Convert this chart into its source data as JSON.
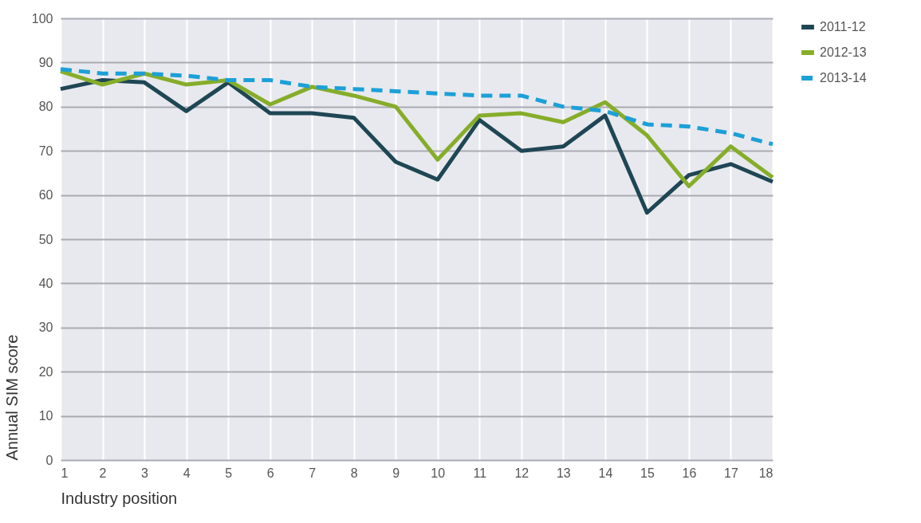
{
  "chart_data": {
    "type": "line",
    "xlabel": "Industry position",
    "ylabel": "Annual SIM score",
    "x": [
      1,
      2,
      3,
      4,
      5,
      6,
      7,
      8,
      9,
      10,
      11,
      12,
      13,
      14,
      15,
      16,
      17,
      18
    ],
    "xlim": [
      1,
      18
    ],
    "xticks": [
      1,
      2,
      3,
      4,
      5,
      6,
      7,
      8,
      9,
      10,
      11,
      12,
      13,
      14,
      15,
      16,
      17,
      18
    ],
    "ylim": [
      0,
      100
    ],
    "yticks": [
      0,
      10,
      20,
      30,
      40,
      50,
      60,
      70,
      80,
      90,
      100
    ],
    "grid": true,
    "legend": "top right",
    "marker": "none",
    "series": [
      {
        "name": "2011-12",
        "color": "#1f4654",
        "line_style": "solid",
        "values": [
          84,
          86,
          85.5,
          79,
          85.5,
          78.5,
          78.5,
          77.5,
          67.5,
          63.5,
          77,
          70,
          71,
          78,
          56,
          64.5,
          67,
          63
        ]
      },
      {
        "name": "2012-13",
        "color": "#86ad2a",
        "line_style": "solid",
        "values": [
          88,
          85,
          87.5,
          85,
          86,
          80.5,
          84.5,
          82.5,
          80,
          68,
          78,
          78.5,
          76.5,
          81,
          73.5,
          62,
          71,
          64
        ]
      },
      {
        "name": "2013-14",
        "color": "#1ca0d8",
        "line_style": "dashed",
        "values": [
          88.5,
          87.5,
          87.5,
          87,
          86,
          86,
          84.5,
          84,
          83.5,
          83,
          82.5,
          82.5,
          80,
          79,
          76,
          75.5,
          74,
          71.5
        ]
      }
    ]
  }
}
